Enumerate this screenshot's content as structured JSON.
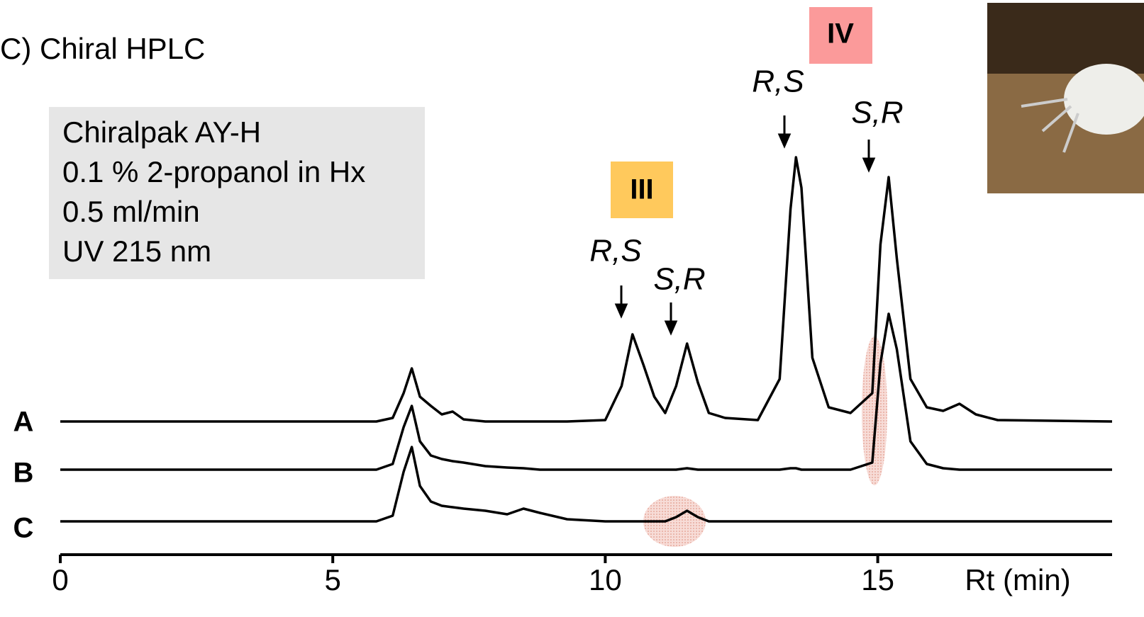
{
  "chart_data": {
    "type": "line",
    "title": "C) Chiral HPLC",
    "info_box": [
      "Chiralpak AY-H",
      "0.1 % 2-propanol in Hx",
      "0.5 ml/min",
      "UV 215 nm"
    ],
    "x_label": "Rt (min)",
    "xlim": [
      0,
      19.3
    ],
    "xticks": [
      0,
      5,
      10,
      15
    ],
    "compound_labels": [
      "III",
      "IV"
    ],
    "peak_labels": [
      "R,S",
      "S,R",
      "R,S",
      "S,R"
    ],
    "x": [
      0,
      3,
      5.8,
      6.1,
      6.3,
      6.45,
      6.6,
      6.8,
      7.0,
      7.2,
      7.4,
      7.8,
      8.2,
      8.5,
      8.8,
      9.3,
      10.0,
      10.3,
      10.5,
      10.7,
      10.9,
      11.1,
      11.3,
      11.5,
      11.7,
      11.9,
      12.2,
      12.8,
      13.2,
      13.4,
      13.5,
      13.6,
      13.8,
      14.1,
      14.5,
      14.9,
      15.05,
      15.2,
      15.35,
      15.6,
      15.9,
      16.2,
      16.5,
      16.8,
      17.2,
      19.3
    ],
    "series": [
      {
        "name": "A",
        "color": "#000000",
        "values": [
          0,
          0,
          0,
          5,
          40,
          75,
          35,
          22,
          10,
          14,
          3,
          0,
          0,
          0,
          0,
          0,
          2,
          50,
          123,
          80,
          35,
          12,
          50,
          110,
          55,
          12,
          5,
          2,
          60,
          300,
          373,
          330,
          90,
          20,
          12,
          40,
          250,
          345,
          230,
          60,
          20,
          15,
          25,
          10,
          2,
          0
        ]
      },
      {
        "name": "B",
        "color": "#000000",
        "values": [
          0,
          0,
          0,
          8,
          60,
          90,
          40,
          20,
          15,
          12,
          10,
          5,
          3,
          2,
          0,
          0,
          0,
          0,
          0,
          0,
          0,
          0,
          0,
          2,
          0,
          0,
          0,
          0,
          0,
          2,
          2,
          0,
          0,
          0,
          0,
          10,
          150,
          220,
          170,
          40,
          8,
          2,
          0,
          0,
          0,
          0
        ]
      },
      {
        "name": "C",
        "color": "#000000",
        "values": [
          0,
          0,
          0,
          8,
          70,
          105,
          50,
          28,
          22,
          20,
          18,
          15,
          10,
          18,
          12,
          3,
          0,
          0,
          0,
          0,
          0,
          0,
          6,
          15,
          6,
          0,
          0,
          0,
          0,
          0,
          0,
          0,
          0,
          0,
          0,
          0,
          0,
          0,
          0,
          0,
          0,
          0,
          0,
          0,
          0,
          0
        ]
      }
    ]
  }
}
